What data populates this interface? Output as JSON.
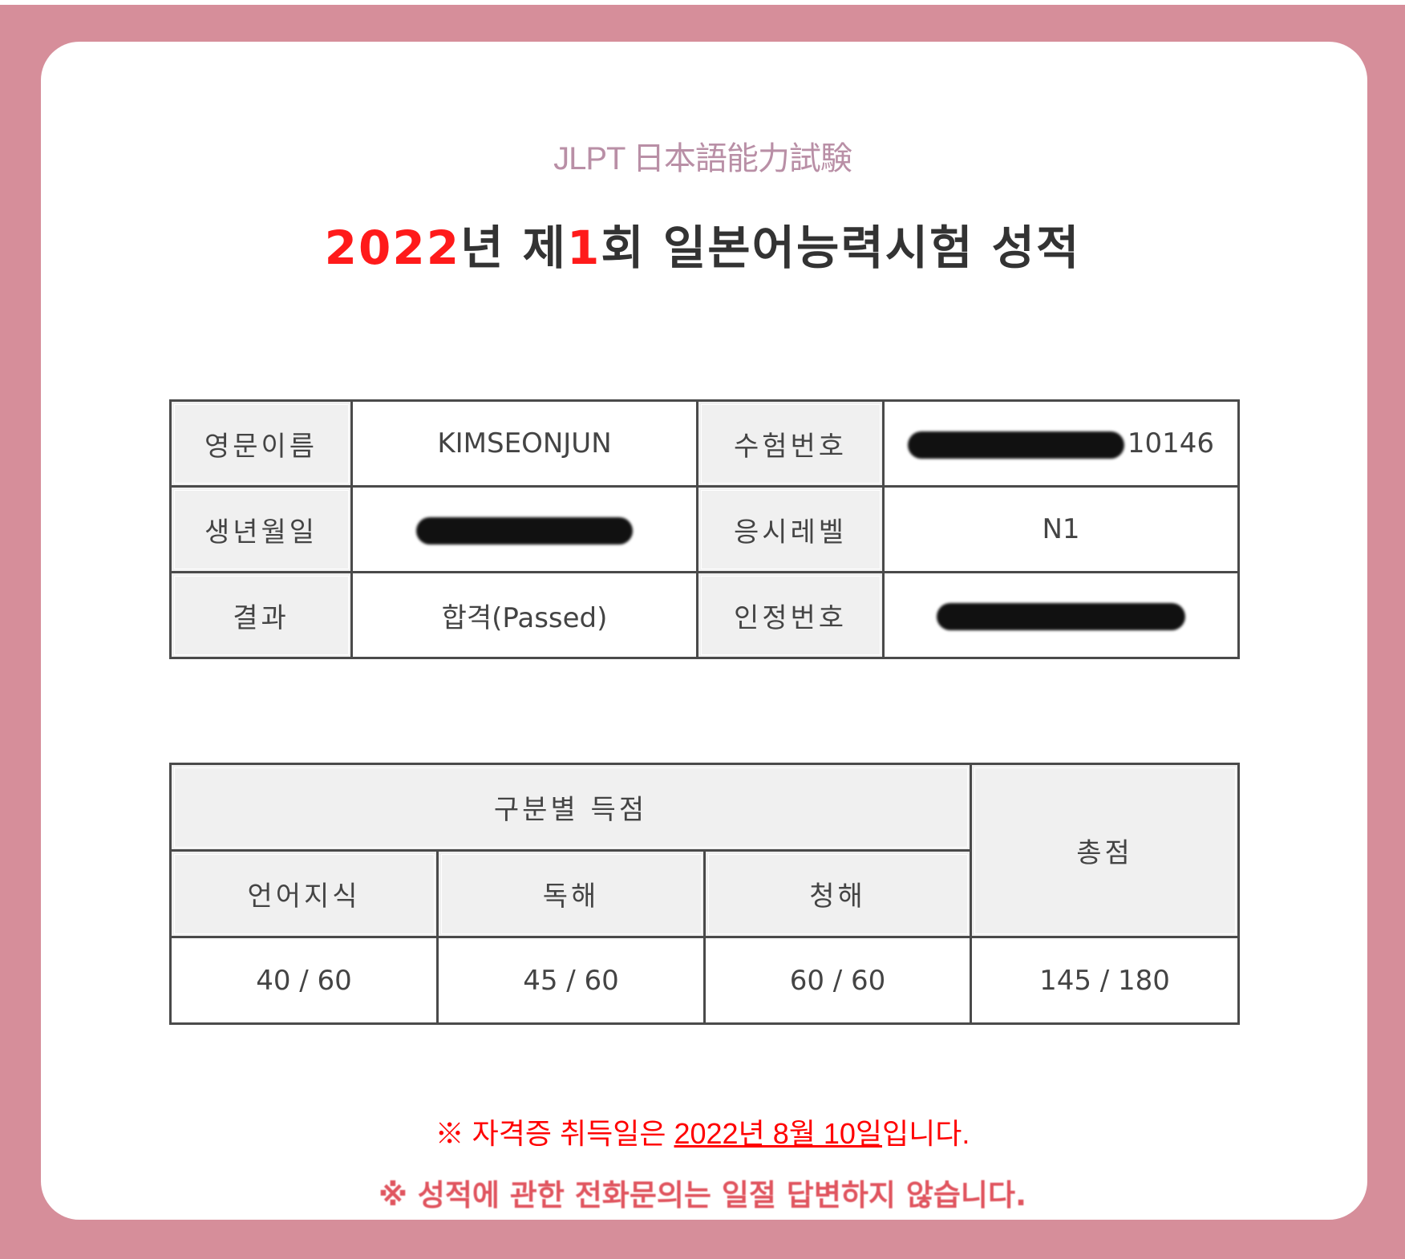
{
  "header": {
    "org": "JLPT 日本語能力試験",
    "title_year": "2022",
    "title_year_suffix": "년 제",
    "title_round": "1",
    "title_rest": "회 일본어능력시험 성적"
  },
  "info_table": {
    "rows": [
      {
        "label1": "영문이름",
        "value1": "KIMSEONJUN",
        "label2": "수험번호",
        "value2": "10146"
      },
      {
        "label1": "생년월일",
        "value1": "",
        "label2": "응시레벨",
        "value2": "N1"
      },
      {
        "label1": "결과",
        "value1": "합격(Passed)",
        "label2": "인정번호",
        "value2": ""
      }
    ]
  },
  "score_table": {
    "group_header": "구분별 득점",
    "total_header": "총점",
    "sections": [
      "언어지식",
      "독해",
      "청해"
    ],
    "scores": [
      "40 / 60",
      "45 / 60",
      "60 / 60"
    ],
    "total": "145 / 180"
  },
  "notes": {
    "note1_prefix": "※ 자격증 취득일은 ",
    "note1_date": "2022년 8월 10일",
    "note1_suffix": "입니다.",
    "note2": "※ 성적에 관한 전화문의는 일절 답변하지 않습니다."
  },
  "colors": {
    "frame": "#d68e9a",
    "accent_red": "#ff0000",
    "header_cell": "#f0f0f0"
  }
}
